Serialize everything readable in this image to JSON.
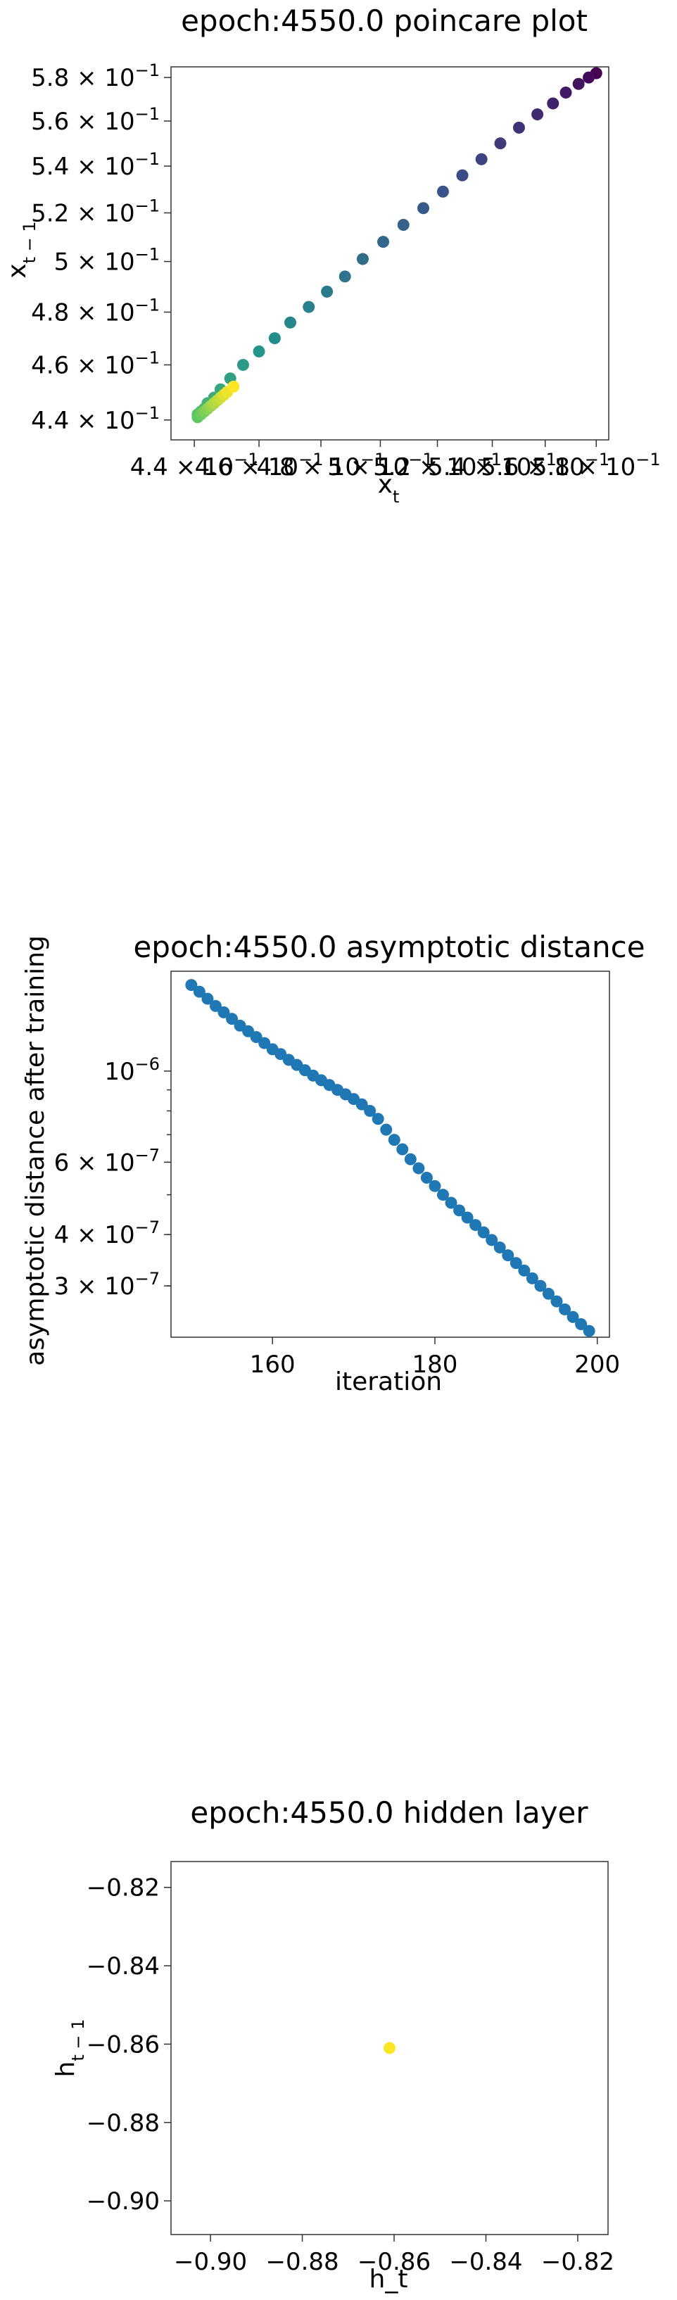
{
  "chart_data": [
    {
      "type": "scatter",
      "title": "epoch:4550.0 poincare plot",
      "xlabel": "x_t",
      "ylabel": "x_{t-1}",
      "xscale": "log",
      "yscale": "log",
      "colormap": "viridis (purple → yellow by index)",
      "xlim": [
        0.433,
        0.585
      ],
      "ylim": [
        0.433,
        0.585
      ],
      "xticks": [
        {
          "v": 0.44,
          "m": "4.4",
          "e": "−1"
        },
        {
          "v": 0.46,
          "m": "4.6",
          "e": "−1"
        },
        {
          "v": 0.48,
          "m": "4.8",
          "e": "−1"
        },
        {
          "v": 0.5,
          "m": "5",
          "e": "−1"
        },
        {
          "v": 0.52,
          "m": "5.2",
          "e": "−1"
        },
        {
          "v": 0.54,
          "m": "5.4",
          "e": "−1"
        },
        {
          "v": 0.56,
          "m": "5.6",
          "e": "−1"
        },
        {
          "v": 0.58,
          "m": "5.8",
          "e": "−1"
        }
      ],
      "yticks": [
        {
          "v": 0.44,
          "m": "4.4",
          "e": "−1"
        },
        {
          "v": 0.46,
          "m": "4.6",
          "e": "−1"
        },
        {
          "v": 0.48,
          "m": "4.8",
          "e": "−1"
        },
        {
          "v": 0.5,
          "m": "5",
          "e": "−1"
        },
        {
          "v": 0.52,
          "m": "5.2",
          "e": "−1"
        },
        {
          "v": 0.54,
          "m": "5.4",
          "e": "−1"
        },
        {
          "v": 0.56,
          "m": "5.6",
          "e": "−1"
        },
        {
          "v": 0.58,
          "m": "5.8",
          "e": "−1"
        }
      ],
      "points": [
        [
          0.58,
          0.582
        ],
        [
          0.577,
          0.58
        ],
        [
          0.573,
          0.577
        ],
        [
          0.568,
          0.573
        ],
        [
          0.563,
          0.568
        ],
        [
          0.557,
          0.563
        ],
        [
          0.55,
          0.557
        ],
        [
          0.543,
          0.55
        ],
        [
          0.536,
          0.543
        ],
        [
          0.529,
          0.536
        ],
        [
          0.522,
          0.529
        ],
        [
          0.515,
          0.522
        ],
        [
          0.508,
          0.515
        ],
        [
          0.501,
          0.508
        ],
        [
          0.494,
          0.501
        ],
        [
          0.488,
          0.494
        ],
        [
          0.482,
          0.488
        ],
        [
          0.476,
          0.482
        ],
        [
          0.47,
          0.476
        ],
        [
          0.465,
          0.47
        ],
        [
          0.46,
          0.465
        ],
        [
          0.455,
          0.46
        ],
        [
          0.451,
          0.455
        ],
        [
          0.448,
          0.451
        ],
        [
          0.446,
          0.448
        ],
        [
          0.444,
          0.446
        ],
        [
          0.443,
          0.444
        ],
        [
          0.442,
          0.443
        ],
        [
          0.441,
          0.442
        ],
        [
          0.441,
          0.441
        ],
        [
          0.442,
          0.442
        ],
        [
          0.443,
          0.443
        ],
        [
          0.444,
          0.444
        ],
        [
          0.445,
          0.445
        ],
        [
          0.446,
          0.446
        ],
        [
          0.447,
          0.447
        ],
        [
          0.448,
          0.448
        ],
        [
          0.449,
          0.449
        ],
        [
          0.45,
          0.45
        ],
        [
          0.452,
          0.452
        ]
      ]
    },
    {
      "type": "scatter",
      "title": "epoch:4550.0 asymptotic distance",
      "xlabel": "iteration",
      "ylabel": "asymptotic distance after training",
      "yscale": "log",
      "color": "#1f77b4",
      "xlim": [
        147.5,
        201.5
      ],
      "ylim": [
        2.25e-07,
        1.75e-06
      ],
      "xticks": [
        {
          "v": 160,
          "label": "160"
        },
        {
          "v": 180,
          "label": "180"
        },
        {
          "v": 200,
          "label": "200"
        }
      ],
      "yticks": [
        {
          "v": 1e-06,
          "m": "10",
          "e": "−6",
          "plain": true
        },
        {
          "v": 6e-07,
          "m": "6",
          "e": "−7"
        },
        {
          "v": 4e-07,
          "m": "4",
          "e": "−7"
        },
        {
          "v": 3e-07,
          "m": "3",
          "e": "−7"
        }
      ],
      "x": [
        150,
        151,
        152,
        153,
        154,
        155,
        156,
        157,
        158,
        159,
        160,
        161,
        162,
        163,
        164,
        165,
        166,
        167,
        168,
        169,
        170,
        171,
        172,
        173,
        174,
        175,
        176,
        177,
        178,
        179,
        180,
        181,
        182,
        183,
        184,
        185,
        186,
        187,
        188,
        189,
        190,
        191,
        192,
        193,
        194,
        195,
        196,
        197,
        198,
        199
      ],
      "y": [
        1.62e-06,
        1.56e-06,
        1.5e-06,
        1.44e-06,
        1.39e-06,
        1.34e-06,
        1.29e-06,
        1.25e-06,
        1.21e-06,
        1.17e-06,
        1.13e-06,
        1.1e-06,
        1.065e-06,
        1.035e-06,
        1.005e-06,
        9.75e-07,
        9.5e-07,
        9.25e-07,
        9e-07,
        8.78e-07,
        8.55e-07,
        8.3e-07,
        8e-07,
        7.65e-07,
        7.2e-07,
        6.8e-07,
        6.45e-07,
        6.1e-07,
        5.8e-07,
        5.5e-07,
        5.25e-07,
        5e-07,
        4.78e-07,
        4.58e-07,
        4.4e-07,
        4.22e-07,
        4.05e-07,
        3.88e-07,
        3.72e-07,
        3.56e-07,
        3.41e-07,
        3.27e-07,
        3.13e-07,
        3e-07,
        2.87e-07,
        2.75e-07,
        2.63e-07,
        2.52e-07,
        2.42e-07,
        2.33e-07
      ]
    },
    {
      "type": "scatter",
      "title": "epoch:4550.0 hidden layer",
      "xlabel": "h_t",
      "ylabel": "h_{t-1}",
      "color": "#fde725",
      "xlim": [
        -0.9086,
        -0.8134
      ],
      "ylim": [
        -0.9086,
        -0.8134
      ],
      "xticks": [
        {
          "v": -0.9,
          "label": "−0.90"
        },
        {
          "v": -0.88,
          "label": "−0.88"
        },
        {
          "v": -0.86,
          "label": "−0.86"
        },
        {
          "v": -0.84,
          "label": "−0.84"
        },
        {
          "v": -0.82,
          "label": "−0.82"
        }
      ],
      "yticks": [
        {
          "v": -0.82,
          "label": "−0.82"
        },
        {
          "v": -0.84,
          "label": "−0.84"
        },
        {
          "v": -0.86,
          "label": "−0.86"
        },
        {
          "v": -0.88,
          "label": "−0.88"
        },
        {
          "v": -0.9,
          "label": "−0.90"
        }
      ],
      "points": [
        [
          -0.861,
          -0.861
        ]
      ]
    }
  ]
}
